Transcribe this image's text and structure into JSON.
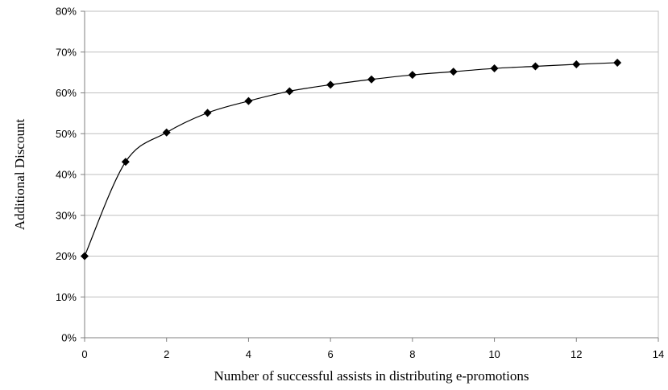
{
  "chart_data": {
    "type": "line",
    "title": "",
    "xlabel": "Number of successful assists in distributing e-promotions",
    "ylabel": "Additional Discount",
    "xlim": [
      0,
      14
    ],
    "ylim": [
      0,
      0.8
    ],
    "x_ticks": [
      0,
      2,
      4,
      6,
      8,
      10,
      12,
      14
    ],
    "x_tick_labels": [
      "0",
      "2",
      "4",
      "6",
      "8",
      "10",
      "12",
      "14"
    ],
    "y_ticks": [
      0,
      0.1,
      0.2,
      0.3,
      0.4,
      0.5,
      0.6,
      0.7,
      0.8
    ],
    "y_tick_labels": [
      "0%",
      "10%",
      "20%",
      "30%",
      "40%",
      "50%",
      "60%",
      "70%",
      "80%"
    ],
    "grid": "horizontal",
    "legend": "none",
    "series": [
      {
        "x": [
          0,
          1,
          2,
          3,
          4,
          5,
          6,
          7,
          8,
          9,
          10,
          11,
          12,
          13
        ],
        "y": [
          0.2,
          0.431,
          0.503,
          0.551,
          0.58,
          0.604,
          0.62,
          0.633,
          0.644,
          0.652,
          0.66,
          0.665,
          0.67,
          0.674
        ],
        "marker": "diamond",
        "color": "#000000"
      }
    ]
  }
}
